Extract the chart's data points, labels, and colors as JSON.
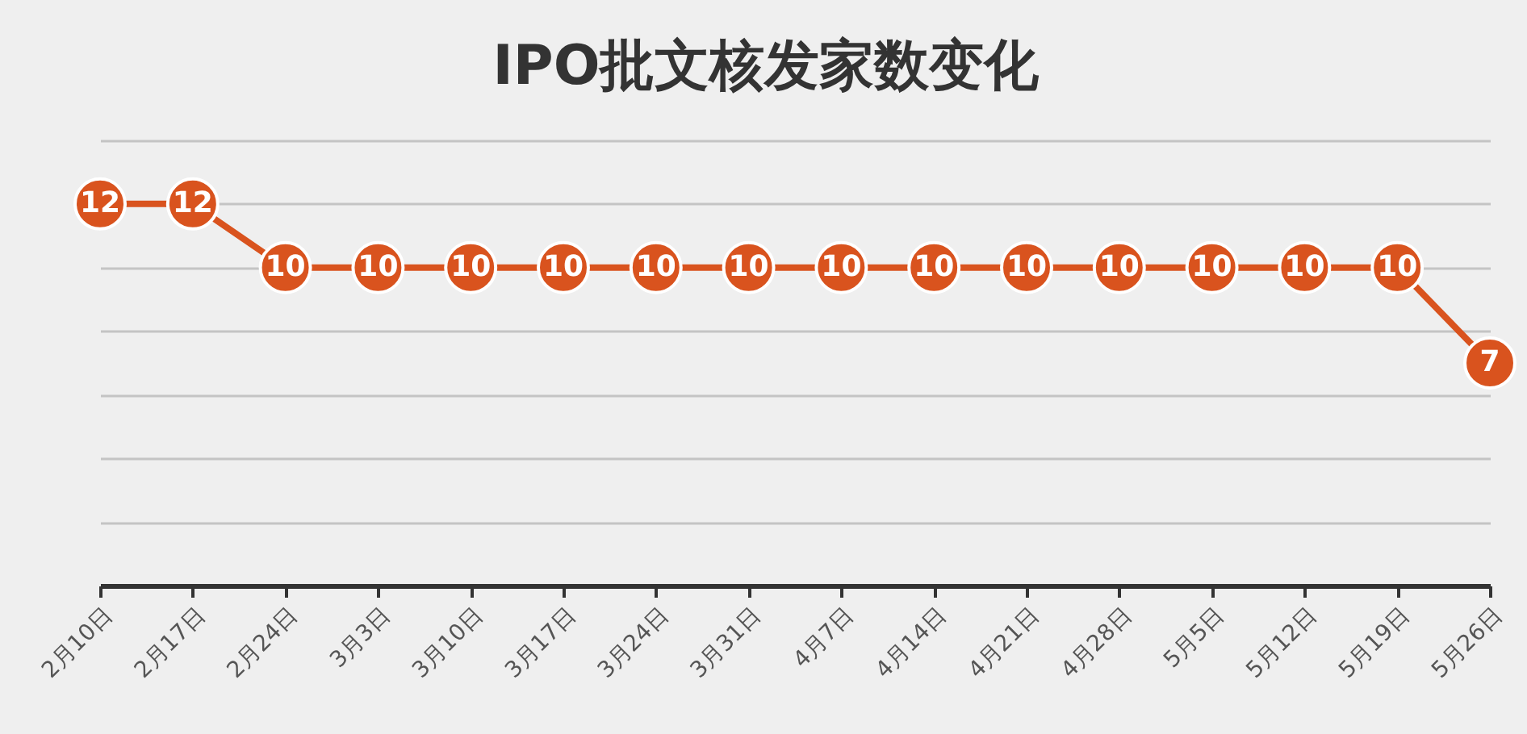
{
  "chart_data": {
    "type": "line",
    "title": "IPO批文核发家数变化",
    "categories": [
      "2月10日",
      "2月17日",
      "2月24日",
      "3月3日",
      "3月10日",
      "3月17日",
      "3月24日",
      "3月31日",
      "4月7日",
      "4月14日",
      "4月21日",
      "4月28日",
      "5月5日",
      "5月12日",
      "5月19日",
      "5月26日"
    ],
    "series": [
      {
        "color": "#d9531e",
        "values": [
          12,
          12,
          10,
          10,
          10,
          10,
          10,
          10,
          10,
          10,
          10,
          10,
          10,
          10,
          10,
          7
        ]
      }
    ],
    "ylim": [
      0,
      14
    ],
    "yticks": [
      {
        "value": 0,
        "label": null
      },
      {
        "value": 2,
        "label": null
      },
      {
        "value": 4,
        "label": null
      },
      {
        "value": 6,
        "label": null
      },
      {
        "value": 8,
        "label": null
      },
      {
        "value": 10,
        "label": null
      },
      {
        "value": 12,
        "label": null
      },
      {
        "value": 14,
        "label": null
      }
    ],
    "tick_labels": "x",
    "grid": "y",
    "data_labels": true,
    "marker": "circle",
    "line_style": "solid"
  }
}
